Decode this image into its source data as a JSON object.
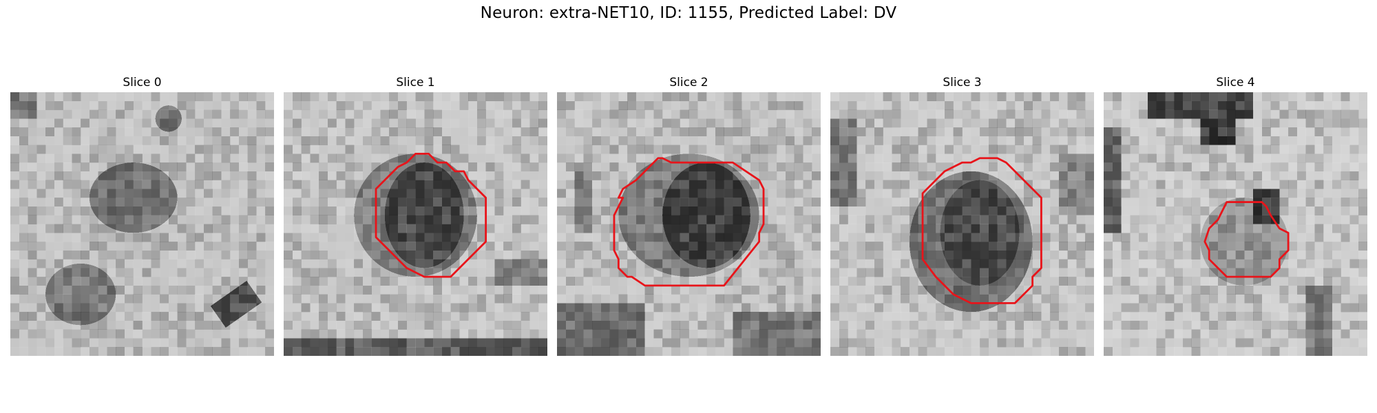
{
  "figure": {
    "title": "Neuron: extra-NET10, ID: 1155, Predicted Label: DV"
  },
  "slices": [
    {
      "title": "Slice 0",
      "has_contour": false
    },
    {
      "title": "Slice 1",
      "has_contour": true
    },
    {
      "title": "Slice 2",
      "has_contour": true
    },
    {
      "title": "Slice 3",
      "has_contour": true
    },
    {
      "title": "Slice 4",
      "has_contour": true
    }
  ],
  "colors": {
    "contour": "#e8141a",
    "background": "#ffffff"
  }
}
